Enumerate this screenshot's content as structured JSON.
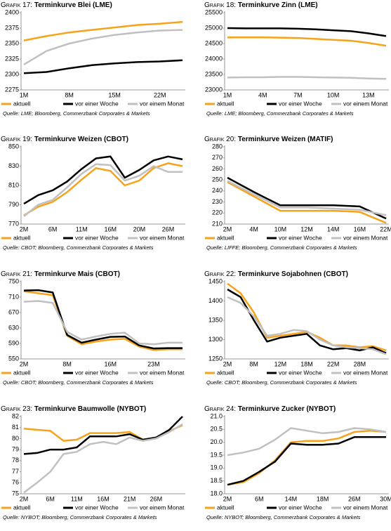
{
  "chart_data": [
    {
      "type": "line",
      "label": "Grafik 17:",
      "title": "Terminkurve Blei (LME)",
      "source": "Quelle: LME; Bloomberg, Commerzbank Corporates & Markets",
      "categories": [
        "1M",
        null,
        "8M",
        null,
        "15M",
        null,
        "22M",
        null
      ],
      "ylim": [
        2275,
        2400
      ],
      "yticks": [
        2275,
        2300,
        2325,
        2350,
        2375,
        2400
      ],
      "grid": false,
      "series": [
        {
          "name": "aktuell",
          "color": "#f7a21b",
          "values": [
            2355,
            2362,
            2368,
            2372,
            2376,
            2380,
            2382,
            2385
          ]
        },
        {
          "name": "vor einer Woche",
          "color": "#000000",
          "values": [
            2302,
            2304,
            2310,
            2315,
            2318,
            2320,
            2321,
            2323
          ]
        },
        {
          "name": "vor einem Monat",
          "color": "#c0c0c0",
          "values": [
            2316,
            2338,
            2350,
            2358,
            2364,
            2368,
            2371,
            2372
          ]
        }
      ]
    },
    {
      "type": "line",
      "label": "Grafik 18:",
      "title": "Terminkurve Zinn (LME)",
      "source": "Quelle: LME; Bloomberg, Commerzbank Corporates & Markets",
      "categories": [
        "1M",
        null,
        "4M",
        null,
        "7M",
        null,
        "10M",
        null,
        "13M",
        null
      ],
      "ylim": [
        23000,
        25500
      ],
      "yticks": [
        23000,
        23500,
        24000,
        24500,
        25000,
        25500
      ],
      "grid": false,
      "series": [
        {
          "name": "aktuell",
          "color": "#f7a21b",
          "values": [
            24700,
            24700,
            24700,
            24690,
            24680,
            24650,
            24620,
            24590,
            24520,
            24430
          ]
        },
        {
          "name": "vor einer Woche",
          "color": "#000000",
          "values": [
            25000,
            24990,
            24990,
            24990,
            24980,
            24960,
            24930,
            24900,
            24830,
            24740
          ]
        },
        {
          "name": "vor einem Monat",
          "color": "#c0c0c0",
          "values": [
            23400,
            23410,
            23410,
            23420,
            23420,
            23410,
            23400,
            23390,
            23370,
            23360
          ]
        }
      ]
    },
    {
      "type": "line",
      "label": "Grafik 19:",
      "title": "Terminkurve Weizen (CBOT)",
      "source": "Quelle: CBOT; Bloomberg, Commerzbank Corporates & Markets",
      "categories": [
        "2M",
        null,
        "6M",
        null,
        "11M",
        null,
        "16M",
        null,
        "20M",
        null,
        "26M",
        null
      ],
      "ylim": [
        770,
        850
      ],
      "yticks": [
        770,
        790,
        810,
        830,
        850
      ],
      "grid": false,
      "series": [
        {
          "name": "aktuell",
          "color": "#f7a21b",
          "values": [
            779,
            788,
            793,
            803,
            816,
            828,
            825,
            810,
            815,
            828,
            833,
            830
          ]
        },
        {
          "name": "vor einer Woche",
          "color": "#000000",
          "values": [
            791,
            800,
            805,
            814,
            827,
            838,
            840,
            818,
            826,
            836,
            840,
            837
          ]
        },
        {
          "name": "vor einem Monat",
          "color": "#c0c0c0",
          "values": [
            778,
            790,
            795,
            808,
            822,
            832,
            831,
            815,
            820,
            830,
            824,
            824
          ]
        }
      ]
    },
    {
      "type": "line",
      "label": "Grafik 20:",
      "title": "Terminkurve Weizen (MATIF)",
      "source": "Quelle: LIFFE; Bloomberg, Commerzbank Corporates & Markets",
      "categories": [
        "2M",
        "4M",
        "10M",
        "12M",
        "14M",
        "16M",
        "22M"
      ],
      "ylim": [
        210,
        280
      ],
      "yticks": [
        210,
        220,
        230,
        240,
        250,
        260,
        270,
        280
      ],
      "grid": false,
      "series": [
        {
          "name": "aktuell",
          "color": "#f7a21b",
          "values": [
            248,
            235,
            222,
            222,
            222,
            221,
            211
          ]
        },
        {
          "name": "vor einer Woche",
          "color": "#000000",
          "values": [
            252,
            239,
            227,
            227,
            227,
            226,
            215
          ]
        },
        {
          "name": "vor einem Monat",
          "color": "#c0c0c0",
          "values": [
            249,
            237,
            225,
            225,
            224,
            223,
            218
          ]
        }
      ]
    },
    {
      "type": "line",
      "label": "Grafik 21:",
      "title": "Terminkurve Mais (CBOT)",
      "source": "Quelle: CBOT; Bloomberg, Commerzbank Corporates & Markets",
      "categories": [
        "2M",
        null,
        null,
        "8M",
        null,
        null,
        "16M",
        null,
        null,
        "23M",
        null,
        null
      ],
      "ylim": [
        550,
        750
      ],
      "yticks": [
        550,
        590,
        630,
        670,
        710,
        750
      ],
      "grid": false,
      "series": [
        {
          "name": "aktuell",
          "color": "#f7a21b",
          "values": [
            725,
            720,
            715,
            610,
            588,
            595,
            600,
            602,
            582,
            573,
            575,
            575
          ]
        },
        {
          "name": "vor einer Woche",
          "color": "#000000",
          "values": [
            727,
            728,
            722,
            612,
            592,
            600,
            607,
            608,
            585,
            577,
            578,
            578
          ]
        },
        {
          "name": "vor einem Monat",
          "color": "#c0c0c0",
          "values": [
            698,
            700,
            695,
            620,
            600,
            608,
            615,
            618,
            590,
            588,
            592,
            592
          ]
        }
      ]
    },
    {
      "type": "line",
      "label": "Grafik 22:",
      "title": "Terminkurve Sojabohnen (CBOT)",
      "source": "Quelle: CBOT; Bloomberg, Commerzbank Corporates & Markets",
      "categories": [
        "2M",
        null,
        "8M",
        null,
        "12M",
        null,
        "18M",
        null,
        "22M",
        null,
        "28M",
        null,
        null
      ],
      "ylim": [
        1250,
        1450
      ],
      "yticks": [
        1250,
        1300,
        1350,
        1400,
        1450
      ],
      "grid": false,
      "series": [
        {
          "name": "aktuell",
          "color": "#f7a21b",
          "values": [
            1445,
            1420,
            1370,
            1305,
            1310,
            1315,
            1320,
            1305,
            1285,
            1285,
            1280,
            1283,
            1272
          ]
        },
        {
          "name": "vor einer Woche",
          "color": "#000000",
          "values": [
            1430,
            1410,
            1350,
            1295,
            1305,
            1310,
            1315,
            1285,
            1275,
            1278,
            1272,
            1280,
            1265
          ]
        },
        {
          "name": "vor einem Monat",
          "color": "#c0c0c0",
          "values": [
            1410,
            1395,
            1360,
            1310,
            1315,
            1325,
            1322,
            1300,
            1285,
            1280,
            1278,
            1275,
            1262
          ]
        }
      ]
    },
    {
      "type": "line",
      "label": "Grafik 23:",
      "title": "Terminkurve Baumwolle (NYBOT)",
      "source": "Quelle: NYBOT; Bloomberg, Commerzbank Corporates & Markets",
      "categories": [
        "2M",
        null,
        "6M",
        null,
        "11M",
        null,
        "16M",
        null,
        "21M",
        null,
        "26M",
        null,
        null
      ],
      "ylim": [
        75,
        82
      ],
      "yticks": [
        75,
        76,
        77,
        78,
        79,
        80,
        81,
        82
      ],
      "grid": false,
      "series": [
        {
          "name": "aktuell",
          "color": "#f7a21b",
          "values": [
            80.9,
            80.8,
            80.7,
            79.8,
            79.9,
            80.5,
            80.5,
            80.5,
            80.6,
            79.9,
            80.1,
            80.7,
            81.2
          ]
        },
        {
          "name": "vor einer Woche",
          "color": "#000000",
          "values": [
            78.6,
            78.7,
            79.0,
            79.0,
            79.2,
            80.2,
            80.2,
            80.2,
            80.4,
            79.9,
            80.1,
            80.8,
            82.0
          ]
        },
        {
          "name": "vor einem Monat",
          "color": "#c0c0c0",
          "values": [
            75.1,
            76.0,
            77.0,
            78.6,
            78.8,
            79.5,
            79.7,
            79.5,
            80.1,
            79.8,
            80.0,
            80.6,
            81.3
          ]
        }
      ]
    },
    {
      "type": "line",
      "label": "Grafik 24:",
      "title": "Terminkurve Zucker (NYBOT)",
      "source": "Quelle: NYBOT; Bloomberg, Commerzbank Corporates & Markets",
      "categories": [
        "2M",
        null,
        "6M",
        null,
        "14M",
        null,
        "18M",
        null,
        "26M",
        null,
        "30M"
      ],
      "ylim": [
        18,
        21
      ],
      "yticks": [
        {
          "value": 18,
          "label": "18.0"
        },
        {
          "value": 18.5,
          "label": "18.5"
        },
        {
          "value": 19,
          "label": "19.0"
        },
        {
          "value": 19.5,
          "label": "19.5"
        },
        {
          "value": 20,
          "label": "20.0"
        },
        {
          "value": 20.5,
          "label": "20.5"
        },
        {
          "value": 21,
          "label": "21.0"
        }
      ],
      "grid": false,
      "series": [
        {
          "name": "aktuell",
          "color": "#f7a21b",
          "values": [
            18.35,
            18.45,
            18.8,
            19.3,
            20.0,
            20.05,
            20.05,
            20.15,
            20.4,
            20.45,
            20.4
          ]
        },
        {
          "name": "vor einer Woche",
          "color": "#000000",
          "values": [
            18.35,
            18.5,
            18.85,
            19.25,
            19.95,
            19.9,
            19.9,
            19.95,
            20.2,
            20.2,
            20.2
          ]
        },
        {
          "name": "vor einem Monat",
          "color": "#c0c0c0",
          "values": [
            19.5,
            19.6,
            19.75,
            20.1,
            20.55,
            20.45,
            20.35,
            20.4,
            20.55,
            20.5,
            20.4
          ]
        }
      ]
    }
  ]
}
